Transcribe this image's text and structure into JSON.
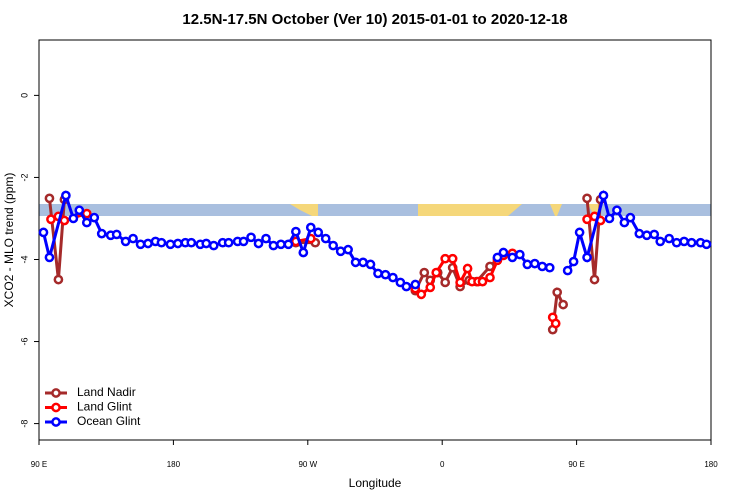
{
  "chart_data": {
    "type": "line",
    "title": "12.5N-17.5N October (Ver 10)   2015-01-01 to 2020-12-18",
    "xlabel": "Longitude",
    "ylabel": "XCO2 - MLO trend (ppm)",
    "xlim": [
      90,
      540
    ],
    "ylim": [
      -8.4,
      1.35
    ],
    "xticks": [
      {
        "value": 90,
        "label": "90 E"
      },
      180,
      {
        "value": 270,
        "label": "90 W"
      },
      {
        "value": 360,
        "label": "0"
      },
      {
        "value": 450,
        "label": "90 E"
      },
      {
        "value": 540,
        "label": "180"
      }
    ],
    "yticks": [
      0,
      -2,
      -4,
      -6,
      -8
    ],
    "legend": "bottomleft",
    "series": [
      {
        "name": "Land Nadir",
        "color": "#a52a2a",
        "x": [
          97,
          103,
          107,
          null,
          262,
          275,
          null,
          342,
          348,
          352,
          357,
          362,
          367,
          372,
          378,
          383,
          392,
          397,
          null,
          434,
          437,
          441,
          null,
          457,
          462,
          466
        ],
        "values": [
          -2.51,
          -4.49,
          -2.54,
          null,
          -3.59,
          -3.59,
          null,
          -4.76,
          -4.32,
          -4.51,
          -4.32,
          -4.56,
          -4.2,
          -4.66,
          -4.51,
          -4.54,
          -4.17,
          -3.98,
          null,
          -5.71,
          -4.8,
          -5.1,
          null,
          -2.51,
          -4.49,
          -2.54
        ]
      },
      {
        "name": "Land Glint",
        "color": "#ff0000",
        "x": [
          98,
          103,
          107,
          122,
          null,
          262,
          272,
          null,
          342,
          346,
          352,
          356,
          362,
          367,
          372,
          377,
          380,
          384,
          387,
          392,
          397,
          401,
          407,
          null,
          434,
          436,
          null,
          457,
          462,
          466
        ],
        "values": [
          -3.02,
          -2.95,
          -3.05,
          -2.88,
          null,
          -3.56,
          -3.49,
          null,
          -4.71,
          -4.85,
          -4.68,
          -4.32,
          -3.98,
          -3.98,
          -4.56,
          -4.22,
          -4.54,
          -4.54,
          -4.54,
          -4.44,
          -4.02,
          -3.9,
          -3.85,
          null,
          -5.41,
          -5.56,
          null,
          -3.02,
          -2.95,
          -3.05
        ]
      },
      {
        "name": "Ocean Glint",
        "color": "#0000ff",
        "x": [
          93,
          97,
          108,
          113,
          117,
          122,
          127,
          132,
          138,
          142,
          148,
          153,
          158,
          163,
          168,
          172,
          178,
          183,
          188,
          192,
          198,
          202,
          207,
          213,
          217,
          223,
          227,
          232,
          237,
          242,
          247,
          252,
          257,
          262,
          267,
          272,
          277,
          282,
          287,
          292,
          297,
          302,
          307,
          312,
          317,
          322,
          327,
          332,
          336,
          342,
          null,
          397,
          401,
          407,
          412,
          417,
          422,
          427,
          432,
          null,
          444,
          448,
          452,
          457,
          468,
          472,
          477,
          482,
          486,
          492,
          497,
          502,
          506,
          512,
          517,
          522,
          527,
          533,
          537
        ],
        "values": [
          -3.34,
          -3.95,
          -2.44,
          -3.0,
          -2.8,
          -3.1,
          -2.98,
          -3.37,
          -3.41,
          -3.39,
          -3.56,
          -3.49,
          -3.63,
          -3.61,
          -3.56,
          -3.59,
          -3.63,
          -3.61,
          -3.59,
          -3.59,
          -3.63,
          -3.61,
          -3.66,
          -3.59,
          -3.59,
          -3.56,
          -3.56,
          -3.46,
          -3.61,
          -3.49,
          -3.66,
          -3.63,
          -3.63,
          -3.32,
          -3.83,
          -3.22,
          -3.34,
          -3.49,
          -3.66,
          -3.8,
          -3.76,
          -4.07,
          -4.07,
          -4.12,
          -4.34,
          -4.37,
          -4.44,
          -4.56,
          -4.66,
          -4.61,
          null,
          -3.95,
          -3.83,
          -3.95,
          -3.88,
          -4.12,
          -4.1,
          -4.17,
          -4.2,
          null,
          -4.27,
          -4.05,
          -3.34,
          -3.95,
          -2.44,
          -3.0,
          -2.8,
          -3.1,
          -2.98,
          -3.37,
          -3.41,
          -3.39,
          -3.56,
          -3.49,
          -3.59,
          -3.56,
          -3.59,
          -3.59,
          -3.63
        ]
      }
    ]
  }
}
